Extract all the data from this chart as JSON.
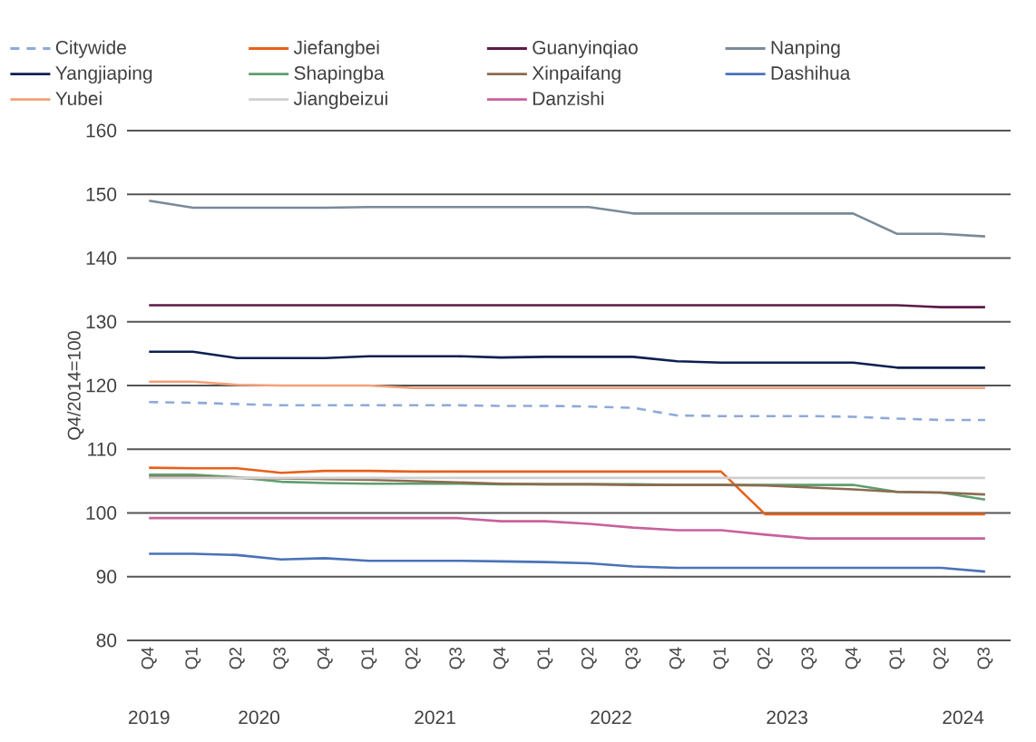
{
  "chart_data": {
    "type": "line",
    "ylabel": "Q4/2014=100",
    "categories": [
      "Q4",
      "Q1",
      "Q2",
      "Q3",
      "Q4",
      "Q1",
      "Q2",
      "Q3",
      "Q4",
      "Q1",
      "Q2",
      "Q3",
      "Q4",
      "Q1",
      "Q2",
      "Q3",
      "Q4",
      "Q1",
      "Q2",
      "Q3"
    ],
    "annotations": [
      "2019",
      "2020",
      "2021",
      "2022",
      "2023",
      "2024"
    ],
    "ylim": [
      80,
      160
    ],
    "yticks": [
      80,
      90,
      100,
      110,
      120,
      130,
      140,
      150,
      160
    ],
    "grid": "y",
    "legend": "top",
    "marker": "none",
    "series": [
      {
        "name": "Citywide",
        "color": "#8fa9d8",
        "line_style": "dashed",
        "values": [
          117.4,
          117.3,
          117.1,
          116.9,
          116.9,
          116.9,
          116.9,
          116.9,
          116.8,
          116.8,
          116.7,
          116.5,
          115.3,
          115.2,
          115.2,
          115.2,
          115.1,
          114.8,
          114.6,
          114.6
        ]
      },
      {
        "name": "Jiefangbei",
        "color": "#e8601c",
        "values": [
          107.1,
          107.0,
          107.0,
          106.3,
          106.6,
          106.6,
          106.5,
          106.5,
          106.5,
          106.5,
          106.5,
          106.5,
          106.5,
          106.5,
          99.8,
          99.8,
          99.8,
          99.8,
          99.8,
          99.8
        ]
      },
      {
        "name": "Guanyinqiao",
        "color": "#5c1a48",
        "values": [
          132.6,
          132.6,
          132.6,
          132.6,
          132.6,
          132.6,
          132.6,
          132.6,
          132.6,
          132.6,
          132.6,
          132.6,
          132.6,
          132.6,
          132.6,
          132.6,
          132.6,
          132.6,
          132.3,
          132.3
        ]
      },
      {
        "name": "Nanping",
        "color": "#7a8a99",
        "values": [
          149.0,
          147.9,
          147.9,
          147.9,
          147.9,
          148.0,
          148.0,
          148.0,
          148.0,
          148.0,
          148.0,
          147.0,
          147.0,
          147.0,
          147.0,
          147.0,
          147.0,
          143.8,
          143.8,
          143.4
        ]
      },
      {
        "name": "Yangjiaping",
        "color": "#0b1f51",
        "values": [
          125.3,
          125.3,
          124.3,
          124.3,
          124.3,
          124.6,
          124.6,
          124.6,
          124.4,
          124.5,
          124.5,
          124.5,
          123.8,
          123.6,
          123.6,
          123.6,
          123.6,
          122.8,
          122.8,
          122.8
        ]
      },
      {
        "name": "Shapingba",
        "color": "#5f9e6e",
        "values": [
          106.0,
          106.0,
          105.6,
          104.9,
          104.7,
          104.6,
          104.6,
          104.6,
          104.5,
          104.5,
          104.5,
          104.5,
          104.4,
          104.4,
          104.4,
          104.4,
          104.4,
          103.3,
          103.2,
          102.1
        ]
      },
      {
        "name": "Xinpaifang",
        "color": "#8c6b4f",
        "values": [
          105.7,
          105.7,
          105.5,
          105.4,
          105.3,
          105.2,
          105.0,
          104.8,
          104.6,
          104.5,
          104.5,
          104.4,
          104.4,
          104.4,
          104.3,
          104.0,
          103.7,
          103.3,
          103.2,
          102.9
        ]
      },
      {
        "name": "Dashihua",
        "color": "#4a72b8",
        "values": [
          93.6,
          93.6,
          93.4,
          92.7,
          92.9,
          92.5,
          92.5,
          92.5,
          92.4,
          92.3,
          92.1,
          91.6,
          91.4,
          91.4,
          91.4,
          91.4,
          91.4,
          91.4,
          91.4,
          90.8
        ]
      },
      {
        "name": "Yubei",
        "color": "#f4a07a",
        "values": [
          120.6,
          120.6,
          120.1,
          120.0,
          120.0,
          120.0,
          119.6,
          119.6,
          119.6,
          119.6,
          119.6,
          119.6,
          119.6,
          119.6,
          119.6,
          119.6,
          119.6,
          119.6,
          119.6,
          119.6
        ]
      },
      {
        "name": "Jiangbeizui",
        "color": "#cfcfcf",
        "values": [
          105.5,
          105.5,
          105.5,
          105.5,
          105.5,
          105.5,
          105.5,
          105.5,
          105.5,
          105.5,
          105.5,
          105.5,
          105.5,
          105.5,
          105.5,
          105.5,
          105.5,
          105.5,
          105.5,
          105.5
        ]
      },
      {
        "name": "Danzishi",
        "color": "#c8619d",
        "values": [
          99.2,
          99.2,
          99.2,
          99.2,
          99.2,
          99.2,
          99.2,
          99.2,
          98.7,
          98.7,
          98.3,
          97.7,
          97.3,
          97.3,
          96.6,
          96.0,
          96.0,
          96.0,
          96.0,
          96.0
        ]
      }
    ]
  }
}
